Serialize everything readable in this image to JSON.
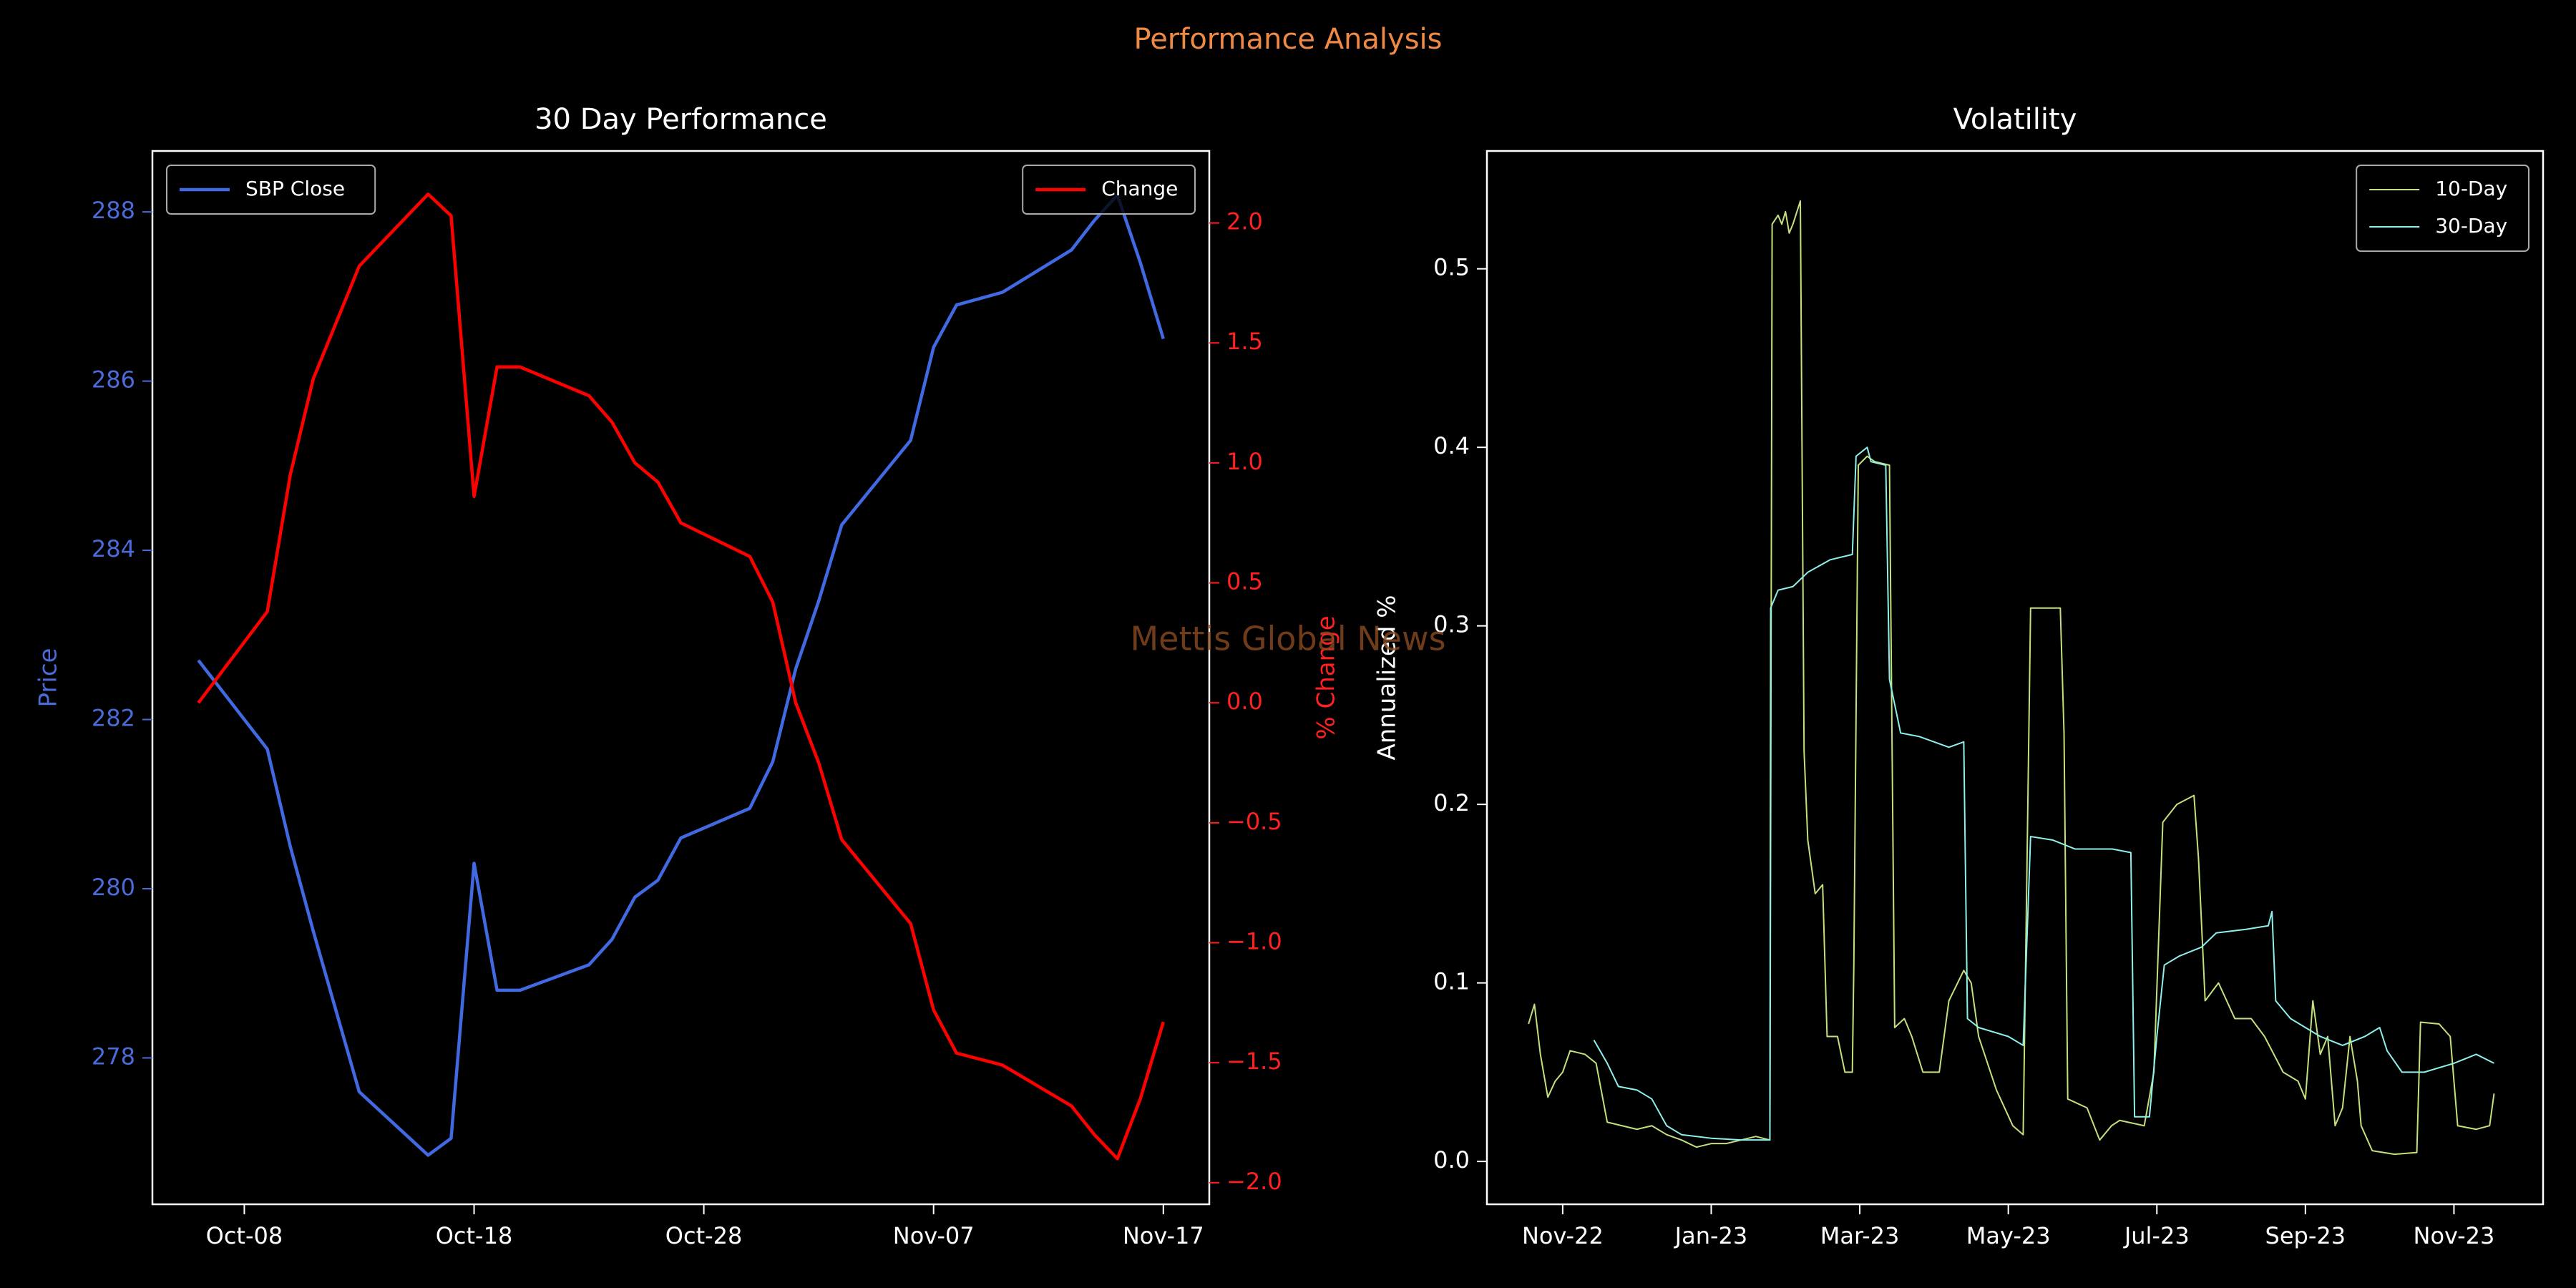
{
  "title": "Performance Analysis",
  "watermark": "Mettis Global News",
  "chart_data": [
    {
      "type": "line",
      "title": "30 Day Performance",
      "x": [
        "Oct-06",
        "Oct-09",
        "Oct-10",
        "Oct-11",
        "Oct-13",
        "Oct-16",
        "Oct-17",
        "Oct-18",
        "Oct-19",
        "Oct-20",
        "Oct-23",
        "Oct-24",
        "Oct-25",
        "Oct-26",
        "Oct-27",
        "Oct-30",
        "Oct-31",
        "Nov-01",
        "Nov-02",
        "Nov-03",
        "Nov-06",
        "Nov-07",
        "Nov-08",
        "Nov-10",
        "Nov-13",
        "Nov-14",
        "Nov-15",
        "Nov-16",
        "Nov-17"
      ],
      "xlim": [
        "Oct-04",
        "Nov-19"
      ],
      "xticks": [
        "Oct-08",
        "Oct-18",
        "Oct-28",
        "Nov-07",
        "Nov-17"
      ],
      "ylabel": "Price",
      "y2label": "% Change",
      "ylim": [
        276.27,
        288.72
      ],
      "yticks": [
        278,
        280,
        282,
        284,
        286,
        288
      ],
      "y2lim": [
        -2.09,
        2.3
      ],
      "y2ticks": [
        {
          "value": -2,
          "label": "−2.0"
        },
        {
          "value": -1.5,
          "label": "−1.5"
        },
        {
          "value": -1,
          "label": "−1.0"
        },
        {
          "value": -0.5,
          "label": "−0.5"
        },
        {
          "value": 0,
          "label": "0.0"
        },
        0.5,
        {
          "value": 1,
          "label": "1.0"
        },
        1.5,
        {
          "value": 2,
          "label": "2.0"
        }
      ],
      "legend": "upper left",
      "legend2": "upper right",
      "ycolor": "#4a6bd8",
      "y2color": "#ff2020",
      "series": [
        {
          "name": "SBP Close",
          "color": "#4169e1",
          "values": [
            282.7,
            281.65,
            280.5,
            279.5,
            277.6,
            276.85,
            277.05,
            280.3,
            278.8,
            278.8,
            279.1,
            279.4,
            279.9,
            280.1,
            280.6,
            280.95,
            281.5,
            282.6,
            283.4,
            284.3,
            285.3,
            286.4,
            286.9,
            287.05,
            287.55,
            287.9,
            288.2,
            287.4,
            286.5
          ]
        },
        {
          "name": "Change",
          "color": "#ff0000",
          "axis": "y2",
          "values": [
            0.0,
            0.38,
            0.95,
            1.35,
            1.82,
            2.12,
            2.03,
            0.86,
            1.4,
            1.4,
            1.28,
            1.17,
            1.0,
            0.92,
            0.75,
            0.61,
            0.42,
            0.0,
            -0.25,
            -0.57,
            -0.92,
            -1.28,
            -1.46,
            -1.51,
            -1.68,
            -1.8,
            -1.9,
            -1.65,
            -1.33
          ]
        }
      ]
    },
    {
      "type": "line",
      "title": "Volatility",
      "ylabel": "Annualized %",
      "xlim": [
        -1.02,
        13.2
      ],
      "xticks": [
        {
          "value": 0,
          "label": "Nov-22"
        },
        {
          "value": 2,
          "label": "Jan-23"
        },
        {
          "value": 4,
          "label": "Mar-23"
        },
        {
          "value": 6,
          "label": "May-23"
        },
        {
          "value": 8,
          "label": "Jul-23"
        },
        {
          "value": 10,
          "label": "Sep-23"
        },
        {
          "value": 12,
          "label": "Nov-23"
        }
      ],
      "ylim": [
        -0.024,
        0.566
      ],
      "yticks": [
        {
          "value": 0,
          "label": "0.0"
        },
        0.1,
        0.2,
        0.3,
        0.4,
        0.5
      ],
      "legend": "upper right",
      "linewidth": 2,
      "series": [
        {
          "name": "10-Day",
          "color": "#c4e07c",
          "x": [
            -0.46,
            -0.38,
            -0.3,
            -0.2,
            -0.1,
            0.0,
            0.1,
            0.3,
            0.45,
            0.5,
            0.6,
            0.8,
            1.0,
            1.2,
            1.4,
            1.6,
            1.8,
            2.0,
            2.2,
            2.4,
            2.6,
            2.79,
            2.82,
            2.9,
            2.95,
            3.0,
            3.05,
            3.1,
            3.2,
            3.25,
            3.3,
            3.4,
            3.5,
            3.56,
            3.7,
            3.8,
            3.9,
            3.92,
            3.98,
            4.1,
            4.2,
            4.4,
            4.47,
            4.6,
            4.7,
            4.85,
            5.07,
            5.2,
            5.4,
            5.5,
            5.6,
            5.84,
            6.06,
            6.2,
            6.3,
            6.5,
            6.7,
            6.75,
            6.8,
            7.06,
            7.23,
            7.39,
            7.5,
            7.83,
            7.96,
            8.08,
            8.27,
            8.5,
            8.56,
            8.65,
            8.83,
            9.05,
            9.27,
            9.45,
            9.7,
            9.9,
            10.0,
            10.1,
            10.2,
            10.3,
            10.4,
            10.5,
            10.6,
            10.7,
            10.75,
            10.9,
            11.2,
            11.5,
            11.55,
            11.8,
            11.95,
            12.05,
            12.3,
            12.48,
            12.54
          ],
          "values": [
            0.077,
            0.088,
            0.06,
            0.036,
            0.045,
            0.05,
            0.062,
            0.06,
            0.055,
            0.044,
            0.022,
            0.02,
            0.018,
            0.02,
            0.015,
            0.012,
            0.008,
            0.01,
            0.01,
            0.012,
            0.014,
            0.012,
            0.525,
            0.53,
            0.525,
            0.532,
            0.52,
            0.525,
            0.538,
            0.23,
            0.18,
            0.15,
            0.155,
            0.07,
            0.07,
            0.05,
            0.05,
            0.11,
            0.39,
            0.395,
            0.392,
            0.39,
            0.075,
            0.08,
            0.07,
            0.05,
            0.05,
            0.09,
            0.107,
            0.1,
            0.07,
            0.04,
            0.02,
            0.015,
            0.31,
            0.31,
            0.31,
            0.24,
            0.035,
            0.03,
            0.012,
            0.02,
            0.023,
            0.02,
            0.05,
            0.19,
            0.2,
            0.205,
            0.17,
            0.09,
            0.1,
            0.08,
            0.08,
            0.07,
            0.05,
            0.045,
            0.035,
            0.09,
            0.06,
            0.07,
            0.02,
            0.03,
            0.07,
            0.045,
            0.02,
            0.006,
            0.004,
            0.005,
            0.078,
            0.077,
            0.07,
            0.02,
            0.018,
            0.02,
            0.038
          ]
        },
        {
          "name": "30-Day",
          "color": "#8ef0ea",
          "x": [
            0.42,
            0.6,
            0.75,
            1.0,
            1.2,
            1.4,
            1.6,
            2.0,
            2.4,
            2.79,
            2.8,
            2.9,
            3.1,
            3.3,
            3.6,
            3.9,
            3.95,
            4.1,
            4.15,
            4.35,
            4.4,
            4.55,
            4.8,
            5.0,
            5.2,
            5.4,
            5.45,
            5.6,
            6.0,
            6.2,
            6.3,
            6.6,
            6.9,
            7.4,
            7.65,
            7.7,
            7.9,
            8.0,
            8.1,
            8.3,
            8.6,
            8.8,
            9.2,
            9.5,
            9.55,
            9.6,
            9.8,
            10.0,
            10.2,
            10.5,
            10.8,
            11.0,
            11.1,
            11.3,
            11.6,
            12.0,
            12.3,
            12.54
          ],
          "values": [
            0.068,
            0.055,
            0.042,
            0.04,
            0.035,
            0.02,
            0.015,
            0.013,
            0.012,
            0.012,
            0.31,
            0.32,
            0.322,
            0.33,
            0.337,
            0.34,
            0.395,
            0.4,
            0.392,
            0.39,
            0.27,
            0.24,
            0.238,
            0.235,
            0.232,
            0.235,
            0.08,
            0.075,
            0.07,
            0.065,
            0.182,
            0.18,
            0.175,
            0.175,
            0.173,
            0.025,
            0.025,
            0.07,
            0.11,
            0.115,
            0.12,
            0.128,
            0.13,
            0.132,
            0.14,
            0.09,
            0.08,
            0.075,
            0.07,
            0.065,
            0.07,
            0.075,
            0.062,
            0.05,
            0.05,
            0.055,
            0.06,
            0.055
          ]
        }
      ]
    }
  ]
}
